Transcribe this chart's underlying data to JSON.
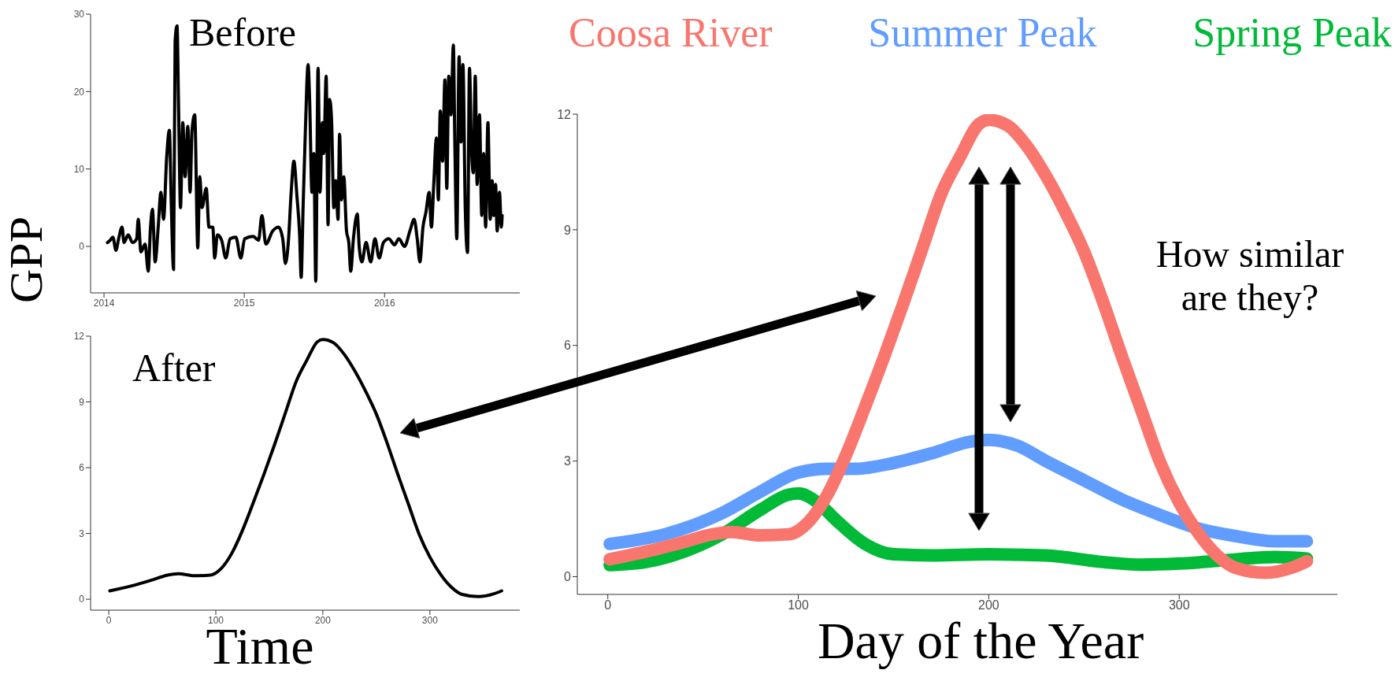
{
  "chart_data": [
    {
      "type": "line",
      "title": "Before",
      "ylabel": "GPP",
      "color": "#000000",
      "xlim": [
        "2013-11-27",
        "2016-12-18"
      ],
      "ylim": [
        -6,
        30
      ],
      "xticks": [
        {
          "value": "2014-01-01",
          "label": "2014"
        },
        {
          "value": "2015-01-01",
          "label": "2015"
        },
        {
          "value": "2016-01-01",
          "label": "2016"
        }
      ],
      "yticks": [
        0,
        10,
        20,
        30
      ],
      "x": [
        "2014-01-10",
        "2014-01-17",
        "2014-01-24",
        "2014-02-01",
        "2014-02-08",
        "2014-02-17",
        "2014-02-22",
        "2014-03-05",
        "2014-03-16",
        "2014-03-27",
        "2014-03-31",
        "2014-04-07",
        "2014-04-18",
        "2014-04-26",
        "2014-05-02",
        "2014-05-07",
        "2014-05-14",
        "2014-05-22",
        "2014-05-29",
        "2014-06-05",
        "2014-06-13",
        "2014-06-20",
        "2014-06-25",
        "2014-07-01",
        "2014-07-05",
        "2014-07-10",
        "2014-07-14",
        "2014-07-19",
        "2014-07-25",
        "2014-07-31",
        "2014-08-07",
        "2014-08-13",
        "2014-08-18",
        "2014-08-25",
        "2014-09-02",
        "2014-09-07",
        "2014-09-13",
        "2014-09-24",
        "2014-10-01",
        "2014-10-11",
        "2014-10-16",
        "2014-10-23",
        "2014-11-03",
        "2014-11-14",
        "2014-11-25",
        "2014-12-10",
        "2014-12-23",
        "2015-01-02",
        "2015-01-24",
        "2015-02-07",
        "2015-02-16",
        "2015-02-26",
        "2015-03-16",
        "2015-03-31",
        "2015-04-11",
        "2015-04-18",
        "2015-04-26",
        "2015-05-03",
        "2015-05-10",
        "2015-05-18",
        "2015-05-25",
        "2015-05-29",
        "2015-06-03",
        "2015-06-09",
        "2015-06-16",
        "2015-06-20",
        "2015-06-26",
        "2015-07-01",
        "2015-07-06",
        "2015-07-12",
        "2015-07-17",
        "2015-07-23",
        "2015-07-27",
        "2015-08-02",
        "2015-08-07",
        "2015-08-11",
        "2015-08-16",
        "2015-08-22",
        "2015-08-27",
        "2015-09-02",
        "2015-09-06",
        "2015-09-11",
        "2015-09-17",
        "2015-09-24",
        "2015-09-30",
        "2015-10-05",
        "2015-10-12",
        "2015-10-22",
        "2015-10-27",
        "2015-11-03",
        "2015-11-14",
        "2015-11-26",
        "2015-12-07",
        "2015-12-18",
        "2015-12-29",
        "2016-01-12",
        "2016-01-27",
        "2016-02-07",
        "2016-02-22",
        "2016-03-07",
        "2016-03-18",
        "2016-03-26",
        "2016-04-02",
        "2016-04-10",
        "2016-04-18",
        "2016-04-26",
        "2016-05-02",
        "2016-05-08",
        "2016-05-15",
        "2016-05-20",
        "2016-05-25",
        "2016-05-31",
        "2016-06-06",
        "2016-06-11",
        "2016-06-16",
        "2016-06-22",
        "2016-06-28",
        "2016-07-02",
        "2016-07-07",
        "2016-07-13",
        "2016-07-18",
        "2016-07-23",
        "2016-07-29",
        "2016-08-04",
        "2016-08-09",
        "2016-08-14",
        "2016-08-19",
        "2016-08-24",
        "2016-08-29",
        "2016-09-04",
        "2016-09-10",
        "2016-09-15",
        "2016-09-20",
        "2016-09-26",
        "2016-10-02",
        "2016-10-07",
        "2016-10-11",
        "2016-10-16",
        "2016-10-20",
        "2016-10-26",
        "2016-10-31",
        "2016-11-02"
      ],
      "values": [
        0.5,
        0.8,
        1.2,
        -0.5,
        1,
        2.5,
        0.5,
        1.5,
        0.5,
        1,
        3.5,
        -0.7,
        0.3,
        -3.2,
        2.5,
        4.8,
        -2,
        2.5,
        7,
        3.5,
        11.5,
        15,
        5.5,
        -3,
        26.5,
        28.5,
        18,
        5,
        16,
        9,
        15.5,
        7,
        15,
        17,
        -0.2,
        9,
        5,
        7.5,
        2.5,
        2.5,
        -1.5,
        1.5,
        0.8,
        -1.5,
        1,
        1.2,
        -1.5,
        1,
        1.3,
        0.8,
        4,
        0.3,
        2,
        2.5,
        1,
        -2.2,
        0.8,
        7,
        11,
        6.5,
        1.5,
        -4,
        5,
        15,
        23.5,
        19,
        7,
        12,
        -4.5,
        23,
        7,
        16,
        12,
        22,
        2.8,
        19,
        16.5,
        5,
        8.5,
        3.5,
        14.5,
        6,
        9,
        2,
        0.5,
        -3.2,
        1,
        4.2,
        0,
        -2,
        0.5,
        -2,
        1,
        -1.5,
        0.5,
        1,
        0.2,
        1,
        0,
        2,
        3.5,
        1,
        -2,
        2.5,
        4.5,
        7,
        2.5,
        8,
        14,
        6,
        17.5,
        11,
        21.5,
        7.5,
        22,
        17,
        26,
        13,
        1,
        24.5,
        13.5,
        23.5,
        5,
        -0.8,
        23,
        13,
        9.5,
        22,
        8,
        17,
        4,
        12,
        2.5,
        16,
        3.5,
        8.5,
        4,
        8,
        2,
        7,
        2.5,
        4
      ]
    },
    {
      "type": "line",
      "title": "After",
      "xlabel": "Time",
      "color": "#000000",
      "xlim": [
        -17,
        384
      ],
      "ylim": [
        -0.5,
        12
      ],
      "xticks": [
        0,
        100,
        200,
        300
      ],
      "yticks": [
        0,
        3,
        6,
        9,
        12
      ],
      "x": [
        1,
        20,
        40,
        55,
        65,
        80,
        95,
        105,
        115,
        125,
        135,
        145,
        155,
        165,
        175,
        185,
        195,
        200,
        210,
        220,
        230,
        240,
        250,
        260,
        270,
        280,
        290,
        300,
        310,
        320,
        330,
        345,
        360,
        367
      ],
      "values": [
        0.38,
        0.59,
        0.87,
        1.1,
        1.16,
        1.07,
        1.1,
        1.4,
        2.1,
        3.15,
        4.4,
        5.7,
        7.07,
        8.5,
        9.93,
        10.9,
        11.75,
        11.85,
        11.7,
        11.17,
        10.4,
        9.48,
        8.44,
        7.13,
        5.7,
        4.33,
        2.96,
        1.92,
        1.13,
        0.55,
        0.22,
        0.12,
        0.25,
        0.38
      ]
    },
    {
      "type": "line",
      "xlabel": "Day of the Year",
      "legend": "top",
      "xlim": [
        -16,
        383
      ],
      "ylim": [
        -0.46,
        12
      ],
      "xticks": [
        0,
        100,
        200,
        300
      ],
      "yticks": [
        0,
        3,
        6,
        9,
        12
      ],
      "annotations": [
        "How similar are they?"
      ],
      "series": [
        {
          "name": "Summer Peak",
          "color": "#619cff",
          "x": [
            1,
            30,
            60,
            80,
            100,
            115,
            130,
            150,
            170,
            190,
            200,
            215,
            230,
            250,
            270,
            290,
            310,
            330,
            350,
            367
          ],
          "values": [
            0.85,
            1.1,
            1.65,
            2.2,
            2.7,
            2.8,
            2.8,
            2.95,
            3.2,
            3.5,
            3.55,
            3.4,
            3,
            2.5,
            2,
            1.6,
            1.25,
            1.05,
            0.92,
            0.92
          ]
        },
        {
          "name": "Spring Peak",
          "color": "#00ba38",
          "x": [
            1,
            20,
            40,
            60,
            80,
            95,
            100,
            110,
            120,
            135,
            150,
            170,
            200,
            230,
            260,
            280,
            300,
            330,
            350,
            367
          ],
          "values": [
            0.3,
            0.38,
            0.65,
            1.1,
            1.73,
            2.13,
            2.16,
            1.93,
            1.46,
            0.85,
            0.58,
            0.55,
            0.58,
            0.55,
            0.38,
            0.31,
            0.34,
            0.45,
            0.51,
            0.47
          ]
        },
        {
          "name": "Coosa River",
          "color": "#f8766d",
          "x": [
            1,
            20,
            40,
            55,
            65,
            80,
            95,
            105,
            115,
            125,
            135,
            145,
            155,
            165,
            175,
            185,
            195,
            200,
            210,
            220,
            230,
            240,
            250,
            260,
            270,
            280,
            290,
            300,
            310,
            320,
            330,
            345,
            360,
            367
          ],
          "values": [
            0.45,
            0.65,
            0.9,
            1.1,
            1.16,
            1.07,
            1.1,
            1.4,
            2.1,
            3.15,
            4.4,
            5.7,
            7.07,
            8.5,
            9.93,
            10.9,
            11.75,
            11.85,
            11.7,
            11.17,
            10.4,
            9.48,
            8.44,
            7.13,
            5.7,
            4.33,
            2.96,
            1.92,
            1.13,
            0.55,
            0.22,
            0.1,
            0.25,
            0.4
          ]
        }
      ]
    }
  ]
}
